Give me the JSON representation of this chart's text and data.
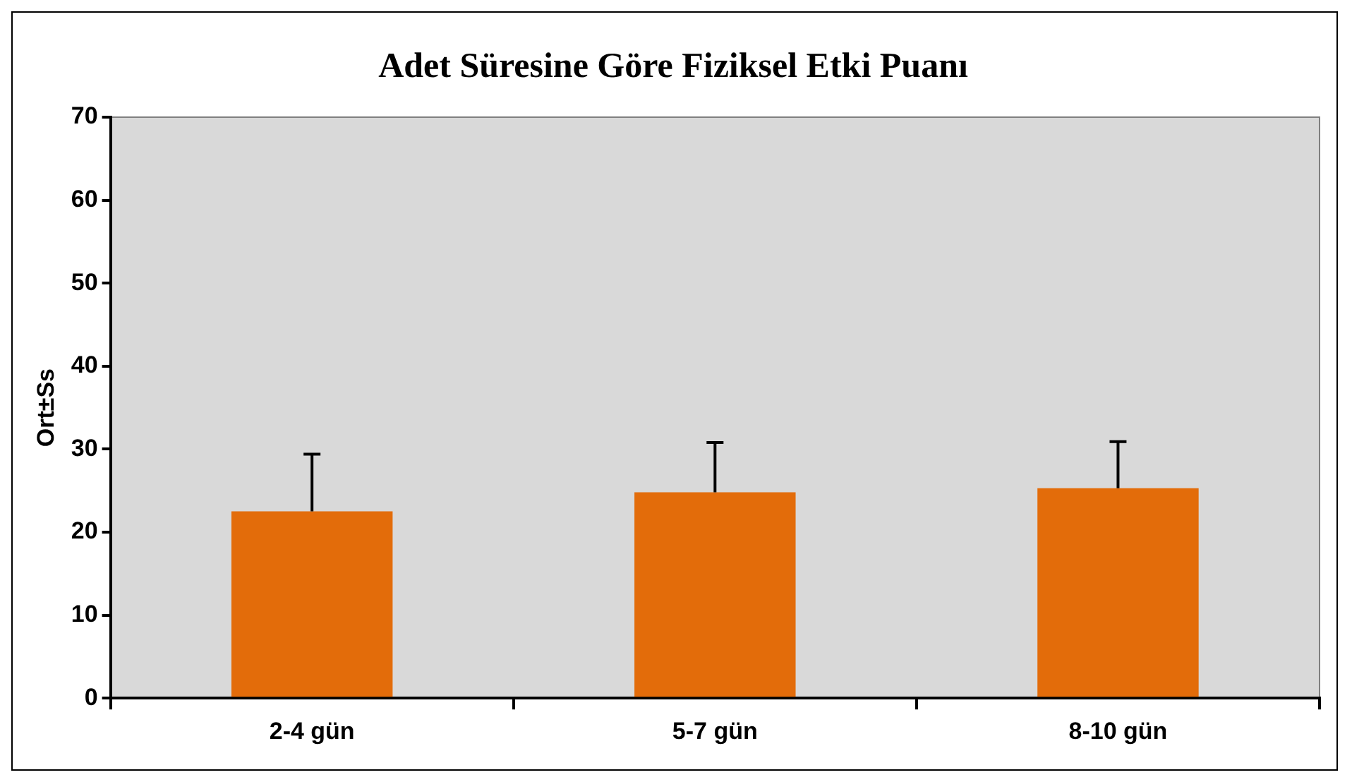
{
  "chart_data": {
    "type": "bar",
    "title": "Adet Süresine Göre Fiziksel Etki Puanı",
    "ylabel": "Ort±Ss",
    "categories": [
      "2-4 gün",
      "5-7 gün",
      "8-10 gün"
    ],
    "values": [
      22.5,
      24.8,
      25.3
    ],
    "errors": [
      [
        22.5,
        29.4
      ],
      [
        24.8,
        30.8
      ],
      [
        25.3,
        30.9
      ]
    ],
    "color": "#e36c0a",
    "ylim": [
      0,
      70
    ],
    "yticks": [
      0,
      10,
      20,
      30,
      40,
      50,
      60,
      70
    ],
    "grid": false,
    "legend": false
  }
}
